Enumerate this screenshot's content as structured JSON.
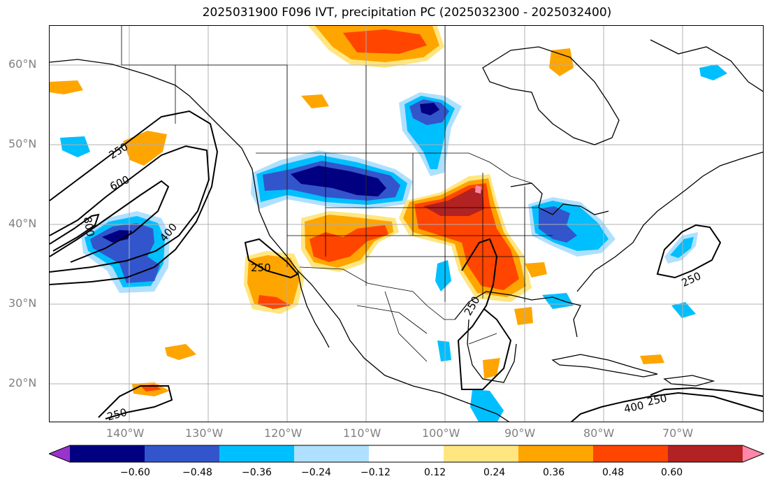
{
  "title": "2025031900 F096 IVT, precipitation PC (2025032300 - 2025032400)",
  "lat_labels": [
    "60°N",
    "50°N",
    "40°N",
    "30°N",
    "20°N"
  ],
  "lon_labels": [
    "140°W",
    "130°W",
    "120°W",
    "110°W",
    "100°W",
    "90°W",
    "80°W",
    "70°W"
  ],
  "colorbar": {
    "ticks": [
      "−0.60",
      "−0.48",
      "−0.36",
      "−0.24",
      "−0.12",
      "0.12",
      "0.24",
      "0.36",
      "0.48",
      "0.60"
    ],
    "colors": [
      "#9933cc",
      "#000080",
      "#3355cc",
      "#00bfff",
      "#b0e0ff",
      "#ffffff",
      "#ffe680",
      "#ffa500",
      "#ff4500",
      "#b22222",
      "#ff88aa"
    ]
  },
  "contour_labels": {
    "ivt_250_pacific": "250",
    "ivt_600": "600",
    "ivt_800": "800",
    "ivt_400_pacific": "400",
    "ivt_250_baja": "250",
    "ivt_250_gulf": "250",
    "ivt_250_atlantic": "250",
    "ivt_250_south": "250",
    "ivt_400_caribbean": "400",
    "ivt_250_caribbean": "250"
  }
}
